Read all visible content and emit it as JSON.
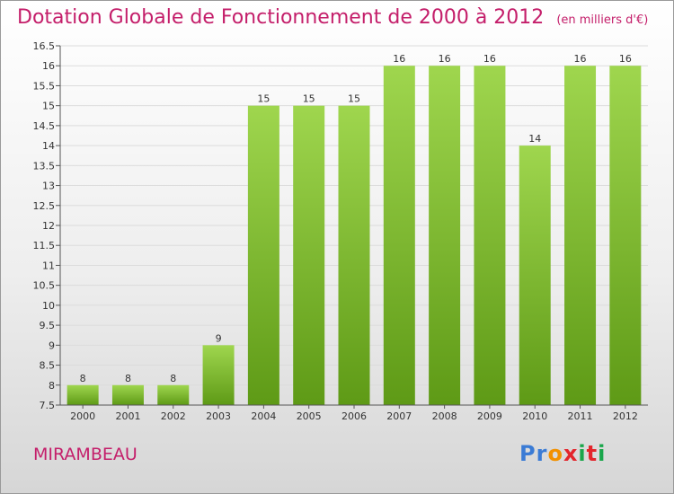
{
  "title": "Dotation Globale de Fonctionnement de 2000 à 2012",
  "unit_note": "(en milliers d'€)",
  "commune": "MIRAMBEAU",
  "logo": {
    "letters": [
      "P",
      "r",
      "o",
      "x",
      "i",
      "t",
      "i"
    ],
    "colors": [
      "#3a7bd5",
      "#3a7bd5",
      "#f29100",
      "#e3262c",
      "#1aa64b",
      "#e3262c",
      "#1aa64b"
    ]
  },
  "colors": {
    "title": "#c41e6a",
    "bar_top": "#9fd64e",
    "bar_bottom": "#5e9a16",
    "axis": "#555555"
  },
  "chart_data": {
    "type": "bar",
    "title": "Dotation Globale de Fonctionnement de 2000 à 2012",
    "categories": [
      "2000",
      "2001",
      "2002",
      "2003",
      "2004",
      "2005",
      "2006",
      "2007",
      "2008",
      "2009",
      "2010",
      "2011",
      "2012"
    ],
    "values": [
      8,
      8,
      8,
      9,
      15,
      15,
      15,
      16,
      16,
      16,
      14,
      16,
      16
    ],
    "labels": [
      "8",
      "8",
      "8",
      "9",
      "15",
      "15",
      "15",
      "16",
      "16",
      "16",
      "14",
      "16",
      "16"
    ],
    "ylim": [
      7.5,
      16.5
    ],
    "yticks": [
      7.5,
      8,
      8.5,
      9,
      9.5,
      10,
      10.5,
      11,
      11.5,
      12,
      12.5,
      13,
      13.5,
      14,
      14.5,
      15,
      15.5,
      16,
      16.5
    ],
    "xlabel": "",
    "ylabel": "",
    "grid": true
  }
}
